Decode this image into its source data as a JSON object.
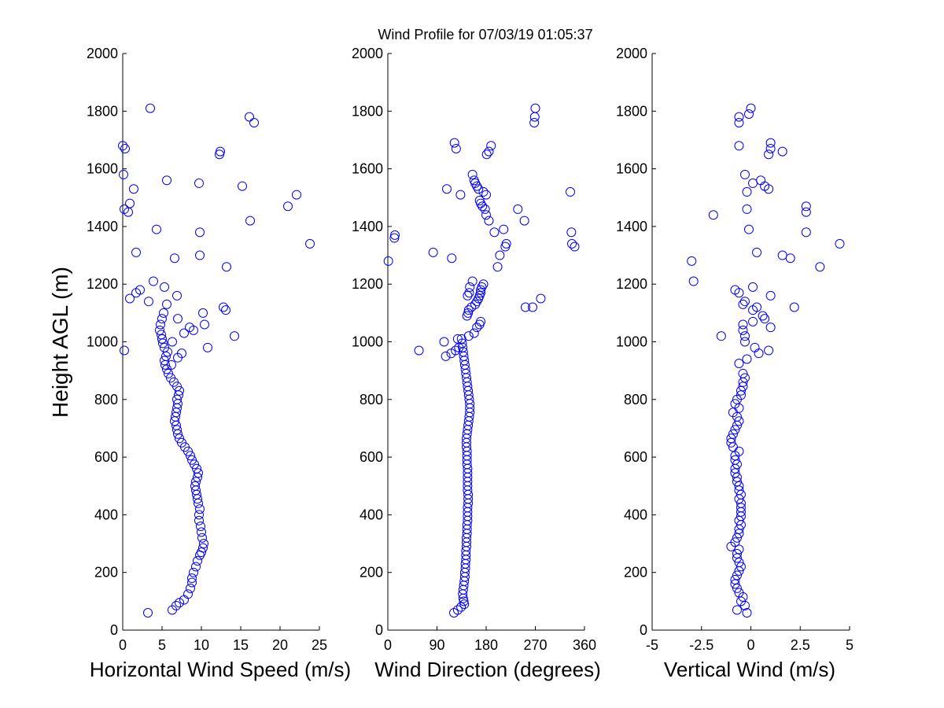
{
  "title": "Wind Profile for  07/03/19 01:05:37",
  "ylabel": "Height AGL (m)",
  "chart_data": [
    {
      "type": "scatter",
      "xlabel": "Horizontal Wind Speed (m/s)",
      "ylabel": "Height AGL (m)",
      "xlim": [
        0,
        25
      ],
      "ylim": [
        0,
        2000
      ],
      "xticks": [
        "0",
        "5",
        "10",
        "15",
        "20",
        "25"
      ],
      "yticks": [
        "0",
        "200",
        "400",
        "600",
        "800",
        "1000",
        "1200",
        "1400",
        "1600",
        "1800",
        "2000"
      ],
      "grid": false,
      "marker": "open circle",
      "color": "#0000ff",
      "x": [
        3.2,
        6.3,
        6.8,
        7.2,
        7.8,
        8.3,
        8.6,
        8.8,
        8.8,
        9.0,
        9.3,
        9.5,
        9.8,
        10.0,
        10.2,
        10.3,
        10.1,
        10.0,
        9.9,
        9.7,
        9.7,
        9.8,
        9.6,
        9.5,
        9.4,
        9.3,
        9.2,
        9.3,
        9.5,
        9.6,
        9.4,
        9.1,
        8.8,
        8.6,
        8.3,
        7.9,
        7.5,
        7.2,
        7.0,
        6.9,
        6.8,
        6.6,
        6.7,
        6.8,
        6.9,
        7.0,
        6.9,
        7.1,
        7.2,
        6.9,
        6.5,
        6.1,
        5.8,
        5.6,
        5.4,
        5.3,
        5.5,
        5.7,
        5.3,
        5.1,
        5.0,
        4.9,
        4.7,
        4.8,
        5.0,
        5.2,
        6.2,
        7.0,
        7.5,
        0.2,
        10.8,
        6.3,
        5.0,
        14.2,
        7.8,
        8.5,
        10.4,
        9.0,
        7.0,
        10.2,
        12.8,
        5.6,
        13.1,
        3.3,
        0.9,
        5.3,
        6.9,
        2.2,
        1.7,
        3.9,
        13.2,
        6.6,
        9.8,
        1.7,
        23.8,
        9.8,
        4.3,
        16.2,
        0.7,
        0.2,
        0.9,
        21.0,
        9.7,
        22.1,
        1.4,
        15.2,
        5.6,
        0.1,
        12.3,
        12.4,
        0.3,
        0.0,
        16.1,
        16.7,
        3.5
      ],
      "y": [
        60,
        70,
        85,
        95,
        105,
        125,
        145,
        165,
        180,
        200,
        220,
        240,
        260,
        270,
        285,
        300,
        320,
        340,
        360,
        380,
        400,
        420,
        440,
        455,
        470,
        485,
        500,
        515,
        530,
        545,
        560,
        575,
        590,
        605,
        620,
        635,
        650,
        665,
        680,
        695,
        710,
        725,
        740,
        755,
        770,
        785,
        800,
        815,
        830,
        845,
        860,
        875,
        890,
        905,
        920,
        935,
        950,
        965,
        980,
        995,
        1010,
        1025,
        1040,
        1060,
        1080,
        1100,
        920,
        945,
        960,
        970,
        980,
        1000,
        1010,
        1020,
        1030,
        1050,
        1060,
        1040,
        1080,
        1100,
        1120,
        1130,
        1110,
        1140,
        1150,
        1190,
        1160,
        1180,
        1170,
        1210,
        1260,
        1290,
        1300,
        1310,
        1340,
        1380,
        1390,
        1420,
        1450,
        1460,
        1480,
        1470,
        1550,
        1510,
        1530,
        1540,
        1560,
        1580,
        1650,
        1660,
        1670,
        1680,
        1780,
        1760,
        1810
      ]
    },
    {
      "type": "scatter",
      "xlabel": "Wind Direction (degrees)",
      "ylabel": "",
      "xlim": [
        0,
        360
      ],
      "ylim": [
        0,
        2000
      ],
      "xticks": [
        "0",
        "90",
        "180",
        "270",
        "360"
      ],
      "yticks": [
        "0",
        "200",
        "400",
        "600",
        "800",
        "1000",
        "1200",
        "1400",
        "1600",
        "1800",
        "2000"
      ],
      "grid": false,
      "marker": "open circle",
      "color": "#0000ff",
      "x": [
        121,
        128,
        134,
        140,
        139,
        138,
        137,
        138,
        139,
        140,
        141,
        141,
        142,
        142,
        143,
        143,
        143,
        144,
        144,
        144,
        145,
        145,
        145,
        146,
        146,
        146,
        146,
        147,
        147,
        147,
        146,
        146,
        146,
        146,
        146,
        146,
        145,
        145,
        145,
        145,
        144,
        144,
        144,
        145,
        146,
        147,
        148,
        149,
        150,
        150,
        150,
        149,
        148,
        147,
        146,
        145,
        144,
        143,
        142,
        141,
        140,
        139,
        138,
        137,
        136,
        135,
        106,
        116,
        124,
        130,
        57,
        103,
        128,
        148,
        158,
        163,
        168,
        170,
        145,
        147,
        148,
        153,
        160,
        163,
        166,
        168,
        170,
        170,
        172,
        175,
        280,
        265,
        150,
        155,
        149,
        146,
        201,
        205,
        215,
        217,
        195,
        212,
        185,
        180,
        178,
        173,
        170,
        168,
        180,
        175,
        166,
        163,
        160,
        158,
        155
      ],
      "y": [
        60,
        70,
        80,
        90,
        100,
        110,
        125,
        140,
        155,
        170,
        185,
        200,
        215,
        230,
        245,
        260,
        275,
        290,
        305,
        320,
        335,
        350,
        365,
        380,
        395,
        410,
        425,
        440,
        455,
        470,
        485,
        500,
        515,
        530,
        545,
        560,
        575,
        590,
        605,
        620,
        635,
        650,
        665,
        680,
        695,
        710,
        725,
        740,
        755,
        770,
        785,
        800,
        815,
        830,
        845,
        860,
        875,
        890,
        905,
        920,
        935,
        950,
        965,
        980,
        995,
        1010,
        950,
        960,
        970,
        980,
        970,
        1000,
        1010,
        1020,
        1030,
        1050,
        1060,
        1070,
        1090,
        1100,
        1110,
        1120,
        1130,
        1140,
        1150,
        1160,
        1170,
        1180,
        1190,
        1200,
        1150,
        1120,
        1190,
        1210,
        1170,
        1160,
        1260,
        1300,
        1330,
        1340,
        1380,
        1390,
        1420,
        1440,
        1460,
        1470,
        1480,
        1490,
        1510,
        1520,
        1530,
        1540,
        1550,
        1560,
        1580
      ],
      "x2": [
        1,
        12,
        13,
        83,
        108,
        117,
        133,
        238,
        250,
        252,
        270,
        269,
        268,
        334,
        336,
        337,
        342,
        122,
        125,
        181,
        185,
        189
      ],
      "y2": [
        1280,
        1360,
        1370,
        1310,
        1530,
        1290,
        1510,
        1460,
        1420,
        1120,
        1810,
        1780,
        1760,
        1520,
        1380,
        1340,
        1330,
        1690,
        1670,
        1650,
        1660,
        1680
      ]
    },
    {
      "type": "scatter",
      "xlabel": "Vertical Wind (m/s)",
      "ylabel": "",
      "xlim": [
        -5,
        5
      ],
      "ylim": [
        0,
        2000
      ],
      "xticks": [
        "-5",
        "-2.5",
        "0",
        "2.5",
        "5"
      ],
      "yticks": [
        "0",
        "200",
        "400",
        "600",
        "800",
        "1000",
        "1200",
        "1400",
        "1600",
        "1800",
        "2000"
      ],
      "grid": false,
      "marker": "open circle",
      "color": "#0000ff",
      "x": [
        -0.2,
        -0.7,
        -0.3,
        -0.5,
        -0.4,
        -0.6,
        -0.7,
        -0.8,
        -0.8,
        -0.7,
        -0.6,
        -0.5,
        -0.6,
        -0.7,
        -0.7,
        -0.6,
        -1.0,
        -0.8,
        -0.7,
        -0.6,
        -0.6,
        -0.5,
        -0.6,
        -0.5,
        -0.5,
        -0.5,
        -0.5,
        -0.6,
        -0.5,
        -0.6,
        -0.6,
        -0.7,
        -0.7,
        -0.8,
        -0.8,
        -0.7,
        -0.8,
        -0.8,
        -0.6,
        -0.9,
        -1.0,
        -1.0,
        -0.9,
        -0.8,
        -0.7,
        -0.6,
        -0.7,
        -0.9,
        -0.6,
        -0.8,
        -0.7,
        -0.5,
        -0.5,
        -0.4,
        -0.4,
        -0.3,
        -0.4,
        -0.6,
        0.9,
        0.2,
        0.4,
        1.0,
        -0.2,
        -0.3,
        -0.3,
        -0.4,
        -0.6,
        -0.8,
        -1.5,
        0.1,
        0.7,
        0.6,
        -0.4,
        1.0,
        -0.4,
        -0.3,
        0.1,
        0.3,
        0.1,
        2.2,
        -3.0,
        -2.9,
        3.5,
        2.0,
        1.6,
        0.3,
        2.8,
        4.5,
        -0.1,
        -1.9,
        -0.2,
        2.8,
        2.8,
        0.9,
        0.7,
        0.5,
        0.1,
        -0.3,
        -0.2,
        -0.6,
        0.9,
        1.0,
        1.6,
        1.0,
        0.0,
        -0.6,
        -0.6,
        -0.1
      ],
      "y": [
        60,
        70,
        85,
        100,
        115,
        130,
        145,
        160,
        175,
        190,
        205,
        220,
        235,
        250,
        265,
        280,
        290,
        305,
        320,
        335,
        350,
        365,
        380,
        395,
        410,
        425,
        440,
        455,
        470,
        485,
        500,
        515,
        530,
        545,
        560,
        575,
        590,
        605,
        620,
        635,
        650,
        665,
        680,
        695,
        710,
        725,
        740,
        755,
        770,
        785,
        800,
        815,
        830,
        845,
        860,
        875,
        890,
        925,
        970,
        980,
        960,
        1160,
        940,
        1000,
        1020,
        1040,
        1170,
        1180,
        1020,
        1070,
        1080,
        1090,
        1060,
        1050,
        1130,
        1140,
        1110,
        1120,
        1190,
        1120,
        1280,
        1210,
        1260,
        1290,
        1300,
        1310,
        1380,
        1340,
        1390,
        1440,
        1460,
        1450,
        1470,
        1530,
        1540,
        1560,
        1550,
        1580,
        1520,
        1680,
        1650,
        1690,
        1660,
        1670,
        1810,
        1780,
        1760,
        1790
      ]
    }
  ]
}
